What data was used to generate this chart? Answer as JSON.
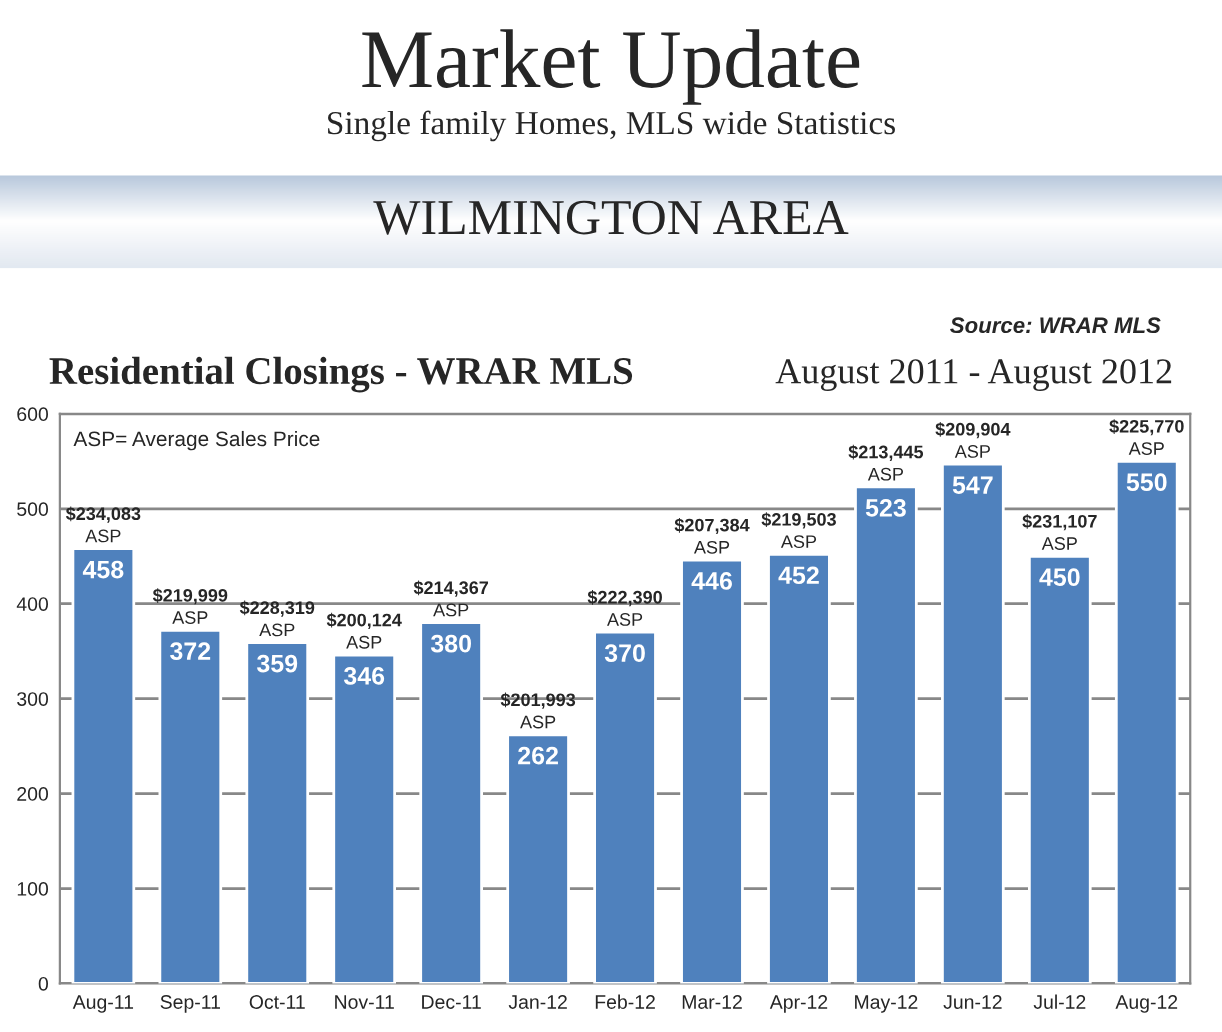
{
  "chart_data": {
    "type": "bar",
    "title": "Market Update",
    "subtitle": "Single family Homes, MLS wide Statistics",
    "categories": [
      "Aug-11",
      "Sep-11",
      "Oct-11",
      "Nov-11",
      "Dec-11",
      "Jan-12",
      "Feb-12",
      "Mar-12",
      "Apr-12",
      "May-12",
      "Jun-12",
      "Jul-12",
      "Aug-12"
    ],
    "values": [
      458,
      372,
      359,
      346,
      380,
      262,
      370,
      446,
      452,
      523,
      547,
      450,
      550
    ],
    "color": "#4f81bd",
    "data_labels": true,
    "ylim": [
      0,
      600
    ],
    "yticks": [
      0,
      100,
      200,
      300,
      400,
      500,
      600
    ],
    "grid": "y",
    "annotations": [
      "WILMINGTON AREA",
      "Source: WRAR MLS",
      "Residential Closings - WRAR MLS",
      "August 2011 - August 2012",
      "ASP= Average Sales Price",
      {
        "text": "$234,083\nASP",
        "x": "Aug-11",
        "y": 458
      },
      {
        "text": "$219,999\nASP",
        "x": "Sep-11",
        "y": 372
      },
      {
        "text": "$228,319\nASP",
        "x": "Oct-11",
        "y": 359
      },
      {
        "text": "$200,124\nASP",
        "x": "Nov-11",
        "y": 346
      },
      {
        "text": "$214,367\nASP",
        "x": "Dec-11",
        "y": 380
      },
      {
        "text": "$201,993\nASP",
        "x": "Jan-12",
        "y": 262
      },
      {
        "text": "$222,390\nASP",
        "x": "Feb-12",
        "y": 370
      },
      {
        "text": "$207,384\nASP",
        "x": "Mar-12",
        "y": 446
      },
      {
        "text": "$219,503\nASP",
        "x": "Apr-12",
        "y": 452
      },
      {
        "text": "$213,445\nASP",
        "x": "May-12",
        "y": 523
      },
      {
        "text": "$209,904\nASP",
        "x": "Jun-12",
        "y": 547
      },
      {
        "text": "$231,107\nASP",
        "x": "Jul-12",
        "y": 450
      },
      {
        "text": "$225,770\nASP",
        "x": "Aug-12",
        "y": 550
      }
    ]
  }
}
